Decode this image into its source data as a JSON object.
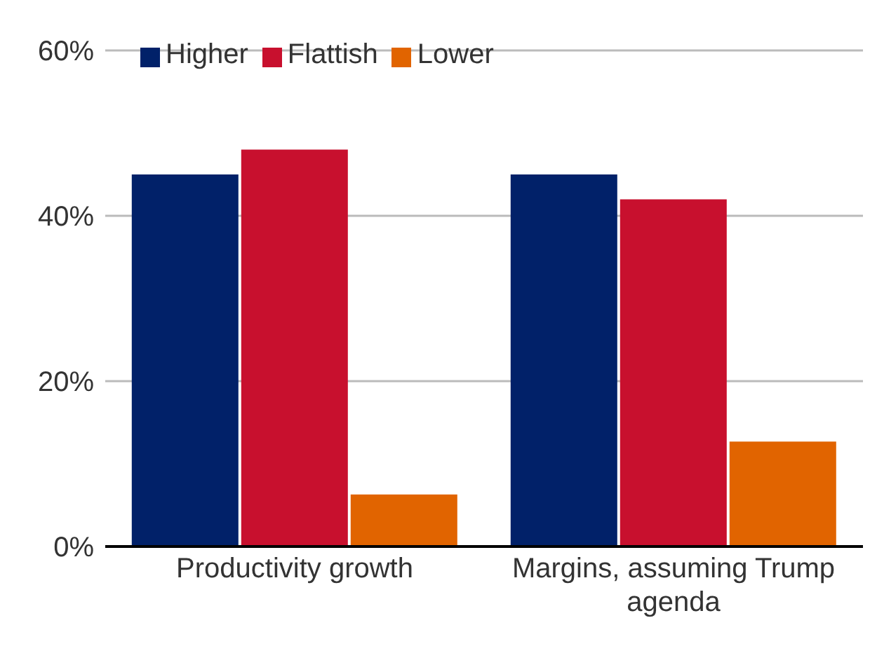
{
  "chart_data": {
    "type": "bar",
    "categories": [
      "Productivity growth",
      "Margins, assuming Trump agenda"
    ],
    "series": [
      {
        "name": "Higher",
        "color": "#012169",
        "values": [
          45,
          45
        ]
      },
      {
        "name": "Flattish",
        "color": "#c8102e",
        "values": [
          48,
          42
        ]
      },
      {
        "name": "Lower",
        "color": "#e16400",
        "values": [
          6.3,
          12.7
        ]
      }
    ],
    "ylim": [
      0,
      60
    ],
    "yticks": [
      {
        "value": 0,
        "label": "0%"
      },
      {
        "value": 20,
        "label": "20%"
      },
      {
        "value": 40,
        "label": "40%"
      },
      {
        "value": 60,
        "label": "60%"
      }
    ],
    "grid": "y",
    "legend": "top left"
  }
}
